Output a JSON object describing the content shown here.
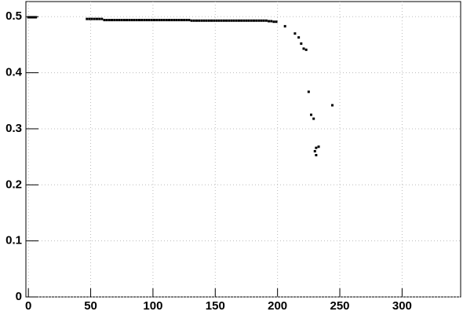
{
  "chart_data": {
    "type": "scatter",
    "color": "#000000",
    "grid": true,
    "x": [
      0,
      1,
      2,
      3,
      4,
      5,
      6,
      47,
      49,
      51,
      53,
      55,
      57,
      59,
      61,
      63,
      65,
      67,
      69,
      71,
      73,
      75,
      77,
      79,
      81,
      83,
      85,
      87,
      89,
      91,
      93,
      95,
      97,
      99,
      101,
      103,
      105,
      107,
      109,
      111,
      113,
      115,
      117,
      119,
      121,
      123,
      125,
      127,
      129,
      131,
      133,
      135,
      137,
      139,
      141,
      143,
      145,
      147,
      149,
      151,
      153,
      155,
      157,
      159,
      161,
      163,
      165,
      167,
      169,
      171,
      173,
      175,
      177,
      179,
      181,
      183,
      185,
      187,
      189,
      191,
      193,
      195,
      197,
      199,
      206,
      214,
      217,
      219,
      221,
      223,
      225,
      227,
      229,
      231,
      230,
      231,
      233,
      244
    ],
    "values": [
      0.499,
      0.499,
      0.499,
      0.499,
      0.499,
      0.499,
      0.499,
      0.496,
      0.496,
      0.496,
      0.496,
      0.496,
      0.496,
      0.496,
      0.494,
      0.494,
      0.494,
      0.494,
      0.494,
      0.494,
      0.494,
      0.494,
      0.494,
      0.494,
      0.494,
      0.494,
      0.494,
      0.494,
      0.494,
      0.494,
      0.494,
      0.494,
      0.494,
      0.494,
      0.494,
      0.494,
      0.494,
      0.494,
      0.494,
      0.494,
      0.494,
      0.494,
      0.494,
      0.494,
      0.494,
      0.494,
      0.494,
      0.494,
      0.494,
      0.493,
      0.493,
      0.493,
      0.493,
      0.493,
      0.493,
      0.493,
      0.493,
      0.493,
      0.493,
      0.493,
      0.493,
      0.493,
      0.493,
      0.493,
      0.493,
      0.493,
      0.493,
      0.493,
      0.493,
      0.493,
      0.493,
      0.493,
      0.493,
      0.493,
      0.493,
      0.493,
      0.493,
      0.493,
      0.493,
      0.493,
      0.492,
      0.492,
      0.491,
      0.491,
      0.483,
      0.47,
      0.463,
      0.452,
      0.443,
      0.441,
      0.366,
      0.325,
      0.318,
      0.266,
      0.26,
      0.253,
      0.268,
      0.342
    ],
    "xlim": [
      -2,
      347
    ],
    "xticks": [
      0,
      50,
      100,
      150,
      200,
      250,
      300
    ],
    "ylim": [
      0,
      0.527
    ],
    "yticks": [
      0,
      0.1,
      0.2,
      0.3,
      0.4,
      0.5
    ]
  }
}
